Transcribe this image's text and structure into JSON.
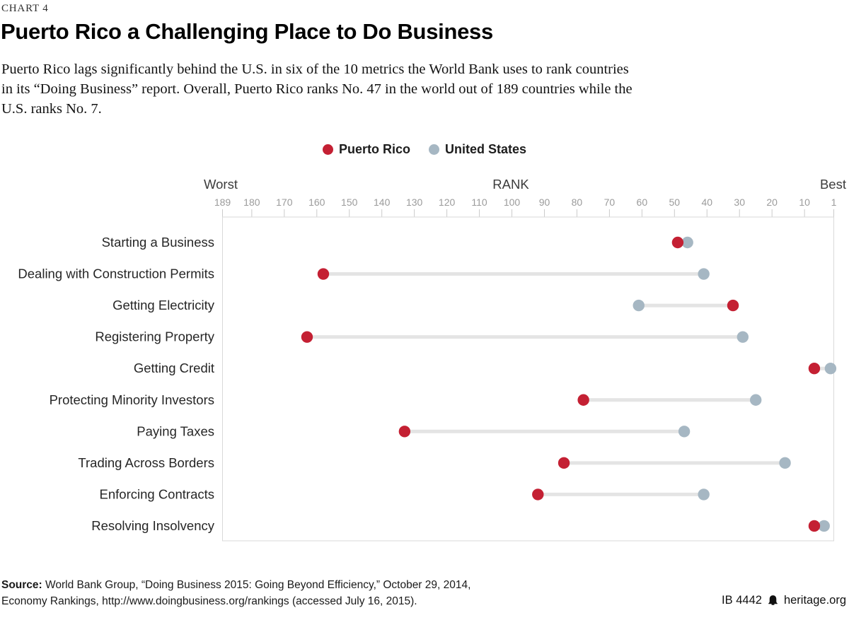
{
  "meta": {
    "chart_label": "CHART 4",
    "title": "Puerto Rico a Challenging Place to Do Business",
    "subtitle_lines": [
      "Puerto Rico lags significantly behind the U.S. in six of the 10 metrics the World Bank uses to rank countries",
      "in its “Doing Business” report. Overall, Puerto Rico ranks No. 47 in the world out of 189 countries while the",
      "U.S. ranks No. 7."
    ]
  },
  "legend": [
    {
      "label": "Puerto Rico",
      "color": "#c42033"
    },
    {
      "label": "United States",
      "color": "#a6b7c3"
    }
  ],
  "axis": {
    "worst_label": "Worst",
    "rank_label": "RANK",
    "best_label": "Best",
    "tick_values": [
      189,
      180,
      170,
      160,
      150,
      140,
      130,
      120,
      110,
      100,
      90,
      80,
      70,
      60,
      50,
      40,
      30,
      20,
      10,
      1
    ],
    "min": 1,
    "max": 189
  },
  "chart_data": {
    "type": "scatter",
    "subtype": "dumbbell",
    "title": "Puerto Rico a Challenging Place to Do Business",
    "xlabel": "RANK",
    "x_range_worst_to_best": [
      189,
      1
    ],
    "grid": false,
    "legend_position": "top-center",
    "categories": [
      "Starting a Business",
      "Dealing with Construction Permits",
      "Getting Electricity",
      "Registering Property",
      "Getting Credit",
      "Protecting Minority Investors",
      "Paying Taxes",
      "Trading Across Borders",
      "Enforcing Contracts",
      "Resolving Insolvency"
    ],
    "series": [
      {
        "name": "Puerto Rico",
        "color": "#c42033",
        "values": [
          49,
          158,
          32,
          163,
          7,
          78,
          133,
          84,
          92,
          7
        ]
      },
      {
        "name": "United States",
        "color": "#a6b7c3",
        "values": [
          46,
          41,
          61,
          29,
          2,
          25,
          47,
          16,
          41,
          4
        ]
      }
    ],
    "connector_color": "#e4e4e4"
  },
  "footer": {
    "source_label": "Source:",
    "source_line1": "World Bank Group, “Doing Business 2015: Going Beyond Efficiency,” October 29, 2014,",
    "source_line2": "Economy Rankings, http://www.doingbusiness.org/rankings (accessed July 16, 2015).",
    "report_id": "IB 4442",
    "site": "heritage.org"
  }
}
